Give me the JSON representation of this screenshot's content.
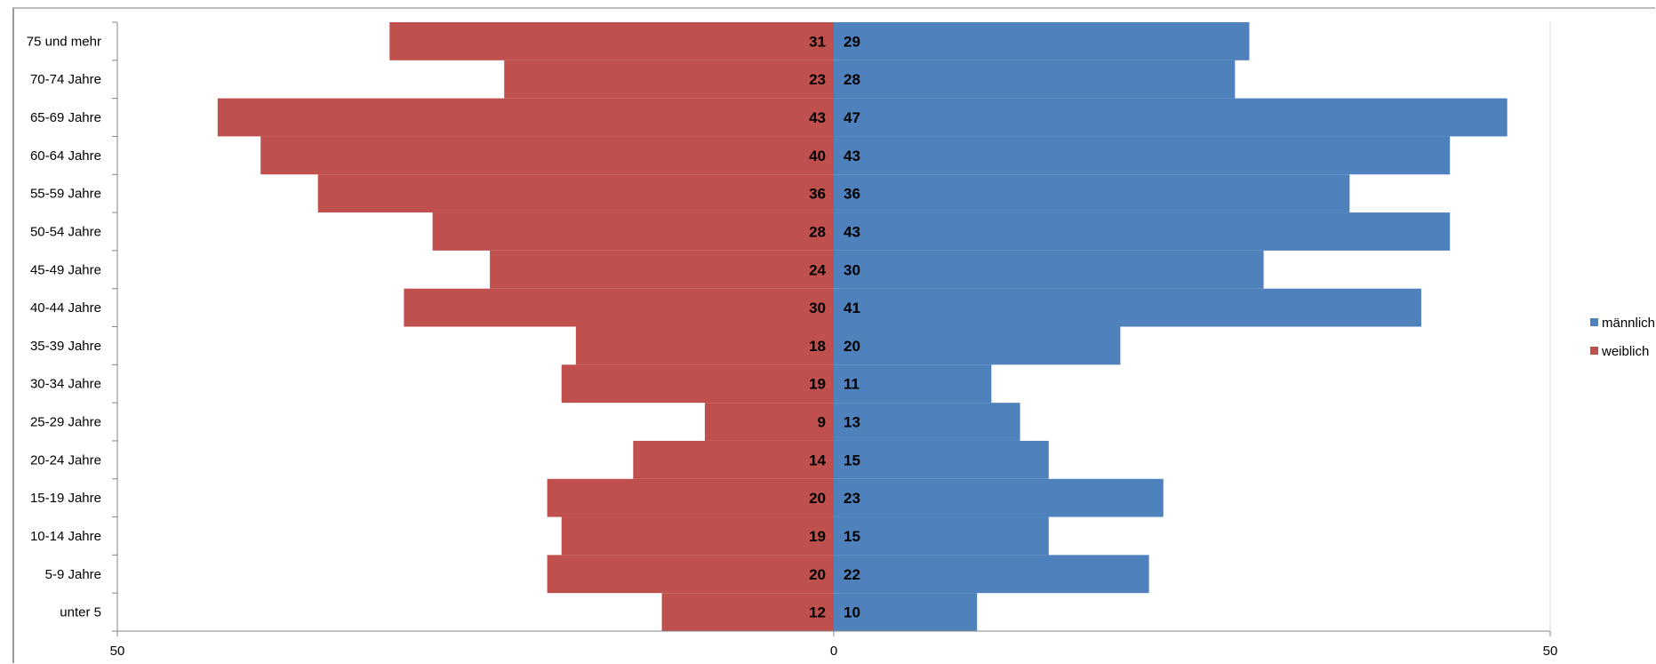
{
  "chart_data": {
    "type": "bar",
    "orientation": "horizontal",
    "layout": "population-pyramid",
    "categories": [
      "unter 5",
      "5-9 Jahre",
      "10-14 Jahre",
      "15-19 Jahre",
      "20-24 Jahre",
      "25-29 Jahre",
      "30-34 Jahre",
      "35-39 Jahre",
      "40-44 Jahre",
      "45-49 Jahre",
      "50-54 Jahre",
      "55-59 Jahre",
      "60-64 Jahre",
      "65-69 Jahre",
      "70-74 Jahre",
      "75 und mehr"
    ],
    "series": [
      {
        "name": "männlich",
        "color": "#4f81bd",
        "side": "right",
        "values": [
          10,
          22,
          15,
          23,
          15,
          13,
          11,
          20,
          41,
          30,
          43,
          36,
          43,
          47,
          28,
          29
        ]
      },
      {
        "name": "weiblich",
        "color": "#c0504d",
        "side": "left",
        "values": [
          12,
          20,
          19,
          20,
          14,
          9,
          19,
          18,
          30,
          24,
          28,
          36,
          40,
          43,
          23,
          31
        ]
      }
    ],
    "x_ticks": [
      "50",
      "0",
      "50"
    ],
    "xlim": [
      -50,
      50
    ],
    "legend_position": "right",
    "grid": false,
    "title": "",
    "xlabel": "",
    "ylabel": ""
  }
}
